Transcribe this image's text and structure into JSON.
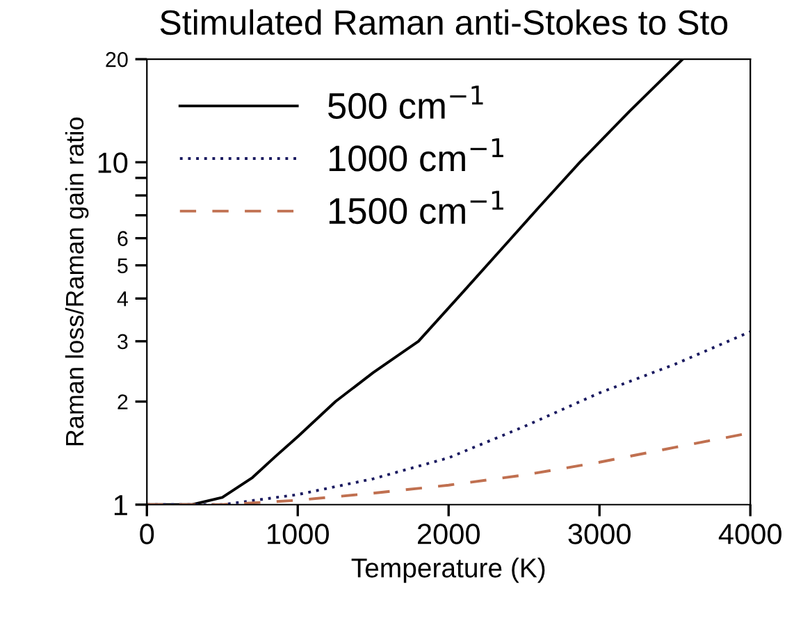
{
  "chart_data": {
    "type": "line",
    "title": "Stimulated Raman anti-Stokes to Sto",
    "xlabel": "Temperature (K)",
    "ylabel": "Raman loss/Raman gain ratio",
    "log": "y",
    "xlim": [
      0,
      4000
    ],
    "ylim": [
      1,
      20
    ],
    "xticks": [
      0,
      1000,
      2000,
      3000,
      4000
    ],
    "yticks": [
      1,
      2,
      3,
      4,
      5,
      6,
      {
        "value": 7,
        "label": null
      },
      {
        "value": 8,
        "label": null
      },
      {
        "value": 9,
        "label": null
      },
      10,
      20
    ],
    "legend": "top left",
    "grid": false,
    "series": [
      {
        "name": "500 cm$^{−1}$",
        "color": "#000000",
        "line_style": "solid",
        "x": [
          0,
          300,
          500,
          700,
          850,
          1000,
          1250,
          1500,
          1800,
          2100,
          2400,
          2600,
          2870,
          3200,
          3551
        ],
        "values": [
          1,
          1.0,
          1.05,
          1.2,
          1.38,
          1.58,
          2.0,
          2.43,
          3.0,
          4.2,
          5.9,
          7.4,
          10,
          14.1,
          20
        ]
      },
      {
        "name": "1000 cm$^{−1}$",
        "color": "#1a1a60",
        "line_style": "dotted",
        "x": [
          0,
          500,
          1000,
          1500,
          2000,
          2500,
          3000,
          3500,
          4000
        ],
        "values": [
          1,
          1.0,
          1.07,
          1.19,
          1.37,
          1.69,
          2.12,
          2.57,
          3.2
        ]
      },
      {
        "name": "1500 cm$^{−1}$",
        "color": "#c07050",
        "line_style": "dashed",
        "x": [
          0,
          500,
          1000,
          1500,
          2000,
          2500,
          3000,
          3500,
          4000
        ],
        "values": [
          1,
          1.0,
          1.03,
          1.08,
          1.14,
          1.22,
          1.33,
          1.47,
          1.62
        ]
      }
    ]
  }
}
